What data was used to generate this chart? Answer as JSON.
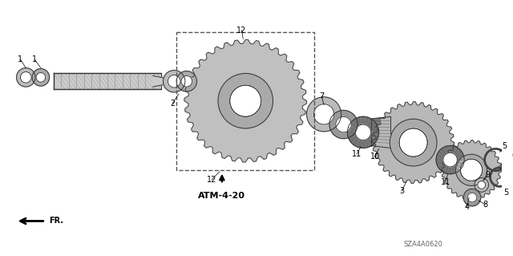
{
  "bg_color": "#ffffff",
  "part_label": "ATM-4-20",
  "catalog_number": "SZA4A0620",
  "direction_label": "FR.",
  "fig_width": 6.4,
  "fig_height": 3.19,
  "dpi": 100,
  "line_color": "#333333",
  "fill_light": "#cccccc",
  "fill_mid": "#aaaaaa",
  "fill_dark": "#777777",
  "fill_white": "#ffffff",
  "label_fontsize": 7,
  "atm_fontsize": 8,
  "catalog_fontsize": 6,
  "fr_fontsize": 7
}
